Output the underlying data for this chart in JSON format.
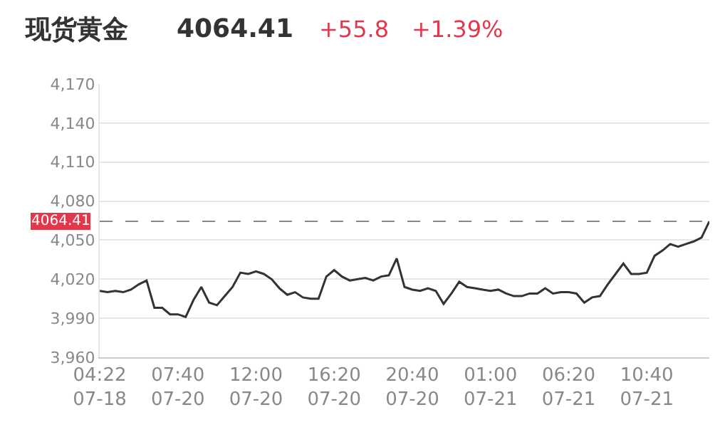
{
  "chart_data": {
    "type": "line",
    "title": "现货黄金",
    "annotations": [
      "4064.41",
      "+55.8",
      "+1.39%"
    ],
    "categories": [
      "04:22\n07-18",
      null,
      null,
      null,
      null,
      null,
      null,
      null,
      null,
      null,
      "07:40\n07-20",
      null,
      null,
      null,
      null,
      null,
      null,
      null,
      null,
      null,
      "12:00\n07-20",
      null,
      null,
      null,
      null,
      null,
      null,
      null,
      null,
      null,
      "16:20\n07-20",
      null,
      null,
      null,
      null,
      null,
      null,
      null,
      null,
      null,
      "20:40\n07-20",
      null,
      null,
      null,
      null,
      null,
      null,
      null,
      null,
      null,
      "01:00\n07-21",
      null,
      null,
      null,
      null,
      null,
      null,
      null,
      null,
      null,
      "06:20\n07-21",
      null,
      null,
      null,
      null,
      null,
      null,
      null,
      null,
      null,
      "10:40\n07-21",
      null,
      null,
      null,
      null,
      null,
      null,
      null,
      null
    ],
    "series": [
      {
        "color": "#333333",
        "values": [
          4011,
          4010,
          4011,
          4010,
          4012,
          4016,
          4019,
          3998,
          3998,
          3993,
          3993,
          3991,
          4004,
          4014,
          4002,
          4000,
          4007,
          4014,
          4025,
          4024,
          4026,
          4024,
          4020,
          4013,
          4008,
          4010,
          4006,
          4005,
          4005,
          4022,
          4027,
          4022,
          4019,
          4020,
          4021,
          4019,
          4022,
          4023,
          4036,
          4014,
          4012,
          4011,
          4013,
          4011,
          4001,
          4009,
          4018,
          4014,
          4013,
          4012,
          4011,
          4012,
          4009,
          4007,
          4007,
          4009,
          4009,
          4013,
          4009,
          4010,
          4010,
          4009,
          4002,
          4006,
          4007,
          4016,
          4024,
          4032,
          4024,
          4024,
          4025,
          4038,
          4042,
          4047,
          4045,
          4047,
          4049,
          4052,
          4064.41
        ]
      }
    ],
    "ylim": [
      3960,
      4170
    ],
    "yticks": [
      {
        "value": 3960,
        "label": "3,960"
      },
      {
        "value": 3990,
        "label": "3,990"
      },
      {
        "value": 4020,
        "label": "4,020"
      },
      {
        "value": 4050,
        "label": "4,050"
      },
      {
        "value": 4080,
        "label": "4,080"
      },
      {
        "value": 4110,
        "label": "4,110"
      },
      {
        "value": 4140,
        "label": "4,140"
      },
      {
        "value": 4170,
        "label": "4,170"
      }
    ],
    "ref_lines": [
      {
        "axis": "y",
        "value": 4064.41,
        "label": "4064.41",
        "color": "#888888",
        "line_style": "dashed"
      }
    ],
    "grid": "y",
    "marker": "none",
    "line_style": "solid"
  }
}
